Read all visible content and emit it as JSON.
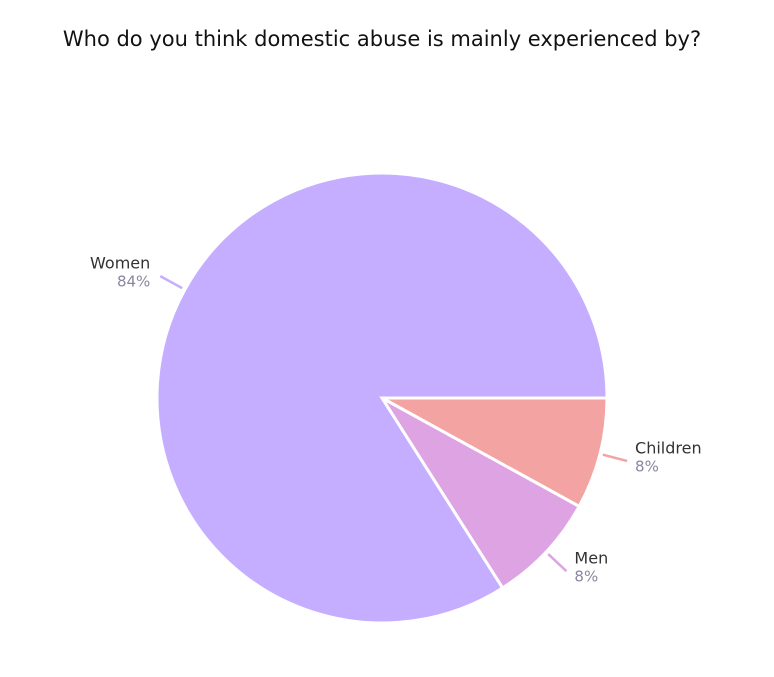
{
  "chart_data": {
    "type": "pie",
    "title": "Who do you think domestic abuse is mainly experienced by?",
    "categories": [
      "Children",
      "Men",
      "Women"
    ],
    "values": [
      8,
      8,
      84
    ],
    "value_labels": [
      "8%",
      "8%",
      "84%"
    ],
    "colors": [
      "#f4a3a3",
      "#dea3e3",
      "#c5adff"
    ]
  }
}
